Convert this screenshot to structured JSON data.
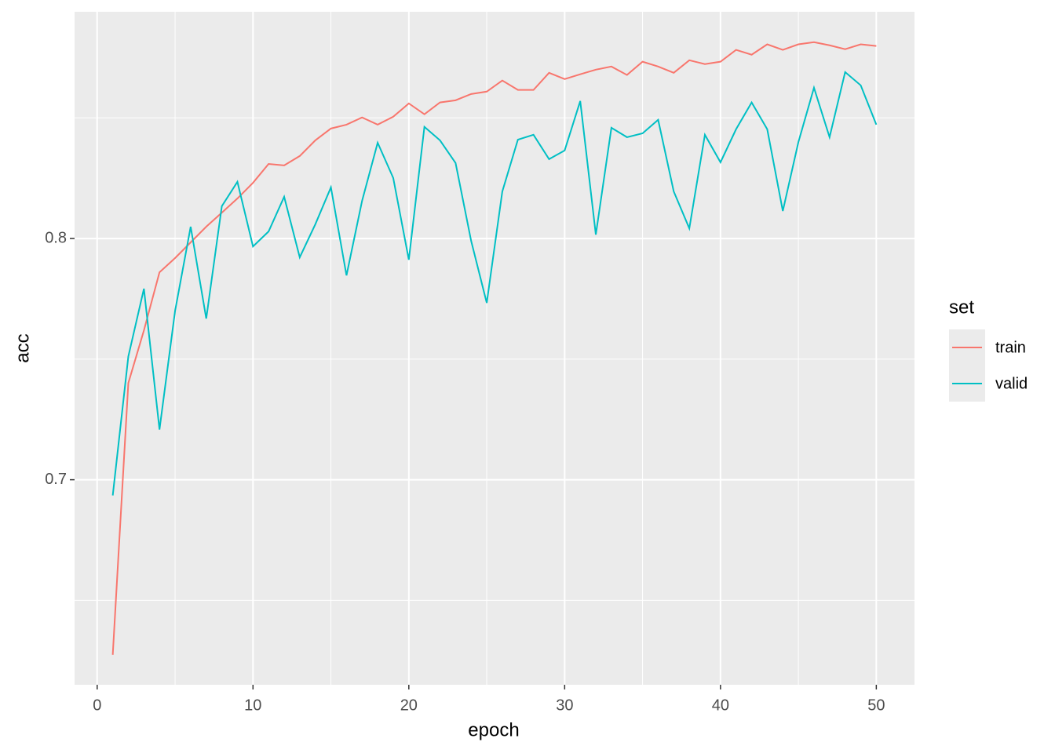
{
  "chart_data": {
    "type": "line",
    "x_label": "epoch",
    "y_label": "acc",
    "x": [
      1,
      2,
      3,
      4,
      5,
      6,
      7,
      8,
      9,
      10,
      11,
      12,
      13,
      14,
      15,
      16,
      17,
      18,
      19,
      20,
      21,
      22,
      23,
      24,
      25,
      26,
      27,
      28,
      29,
      30,
      31,
      32,
      33,
      34,
      35,
      36,
      37,
      38,
      39,
      40,
      41,
      42,
      43,
      44,
      45,
      46,
      47,
      48,
      49,
      50
    ],
    "series": [
      {
        "name": "train",
        "color": "#F8766D",
        "values": [
          0.6274,
          0.7401,
          0.7619,
          0.786,
          0.7919,
          0.7984,
          0.8049,
          0.8107,
          0.8166,
          0.8231,
          0.8309,
          0.8303,
          0.8342,
          0.8407,
          0.8456,
          0.8472,
          0.8502,
          0.8472,
          0.8505,
          0.856,
          0.8515,
          0.8564,
          0.8573,
          0.8599,
          0.8609,
          0.8655,
          0.8616,
          0.8616,
          0.8687,
          0.8661,
          0.8681,
          0.87,
          0.8713,
          0.8678,
          0.8733,
          0.8713,
          0.8687,
          0.8739,
          0.8723,
          0.8733,
          0.8782,
          0.8762,
          0.8805,
          0.8782,
          0.8805,
          0.8814,
          0.8801,
          0.8785,
          0.8805,
          0.8798
        ]
      },
      {
        "name": "valid",
        "color": "#00BFC4",
        "values": [
          0.6935,
          0.7511,
          0.7792,
          0.7208,
          0.77,
          0.8049,
          0.7668,
          0.8134,
          0.8235,
          0.7967,
          0.8029,
          0.8173,
          0.7922,
          0.8059,
          0.8212,
          0.7847,
          0.8156,
          0.8397,
          0.8251,
          0.7912,
          0.8463,
          0.8407,
          0.8313,
          0.799,
          0.7733,
          0.8195,
          0.841,
          0.843,
          0.8329,
          0.8365,
          0.857,
          0.8016,
          0.8459,
          0.842,
          0.8436,
          0.8492,
          0.8195,
          0.8042,
          0.843,
          0.8316,
          0.8453,
          0.8564,
          0.8453,
          0.8114,
          0.84,
          0.8625,
          0.842,
          0.869,
          0.8635,
          0.8472
        ]
      }
    ],
    "xlim": [
      -1.45,
      52.45
    ],
    "xticks": [
      0,
      10,
      20,
      30,
      40,
      50
    ],
    "xminor": [
      5,
      15,
      25,
      35,
      45
    ],
    "ylim": [
      0.615,
      0.894
    ],
    "yticks": [
      0.7,
      0.8
    ],
    "yminor": [
      0.65,
      0.75,
      0.85
    ],
    "grid": true,
    "legend_title": "set",
    "legend_position": "right"
  }
}
